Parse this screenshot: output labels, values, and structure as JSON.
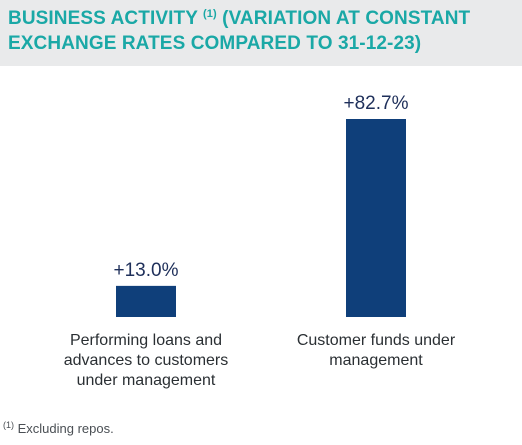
{
  "title": {
    "text_before": "BUSINESS ACTIVITY ",
    "footnote_marker": "(1)",
    "text_after": " (VARIATION AT CONSTANT EXCHANGE RATES COMPARED TO 31-12-23)"
  },
  "footnote": {
    "marker": "(1)",
    "text": " Excluding repos."
  },
  "colors": {
    "title": "#1aa8a6",
    "title_band": "#e9eaeb",
    "bar": "#0f3f7a",
    "value_label": "#1e2f5a"
  },
  "chart_data": {
    "type": "bar",
    "categories": [
      "Performing loans and advances to customers under management",
      "Customer funds under management"
    ],
    "values": [
      13.0,
      82.7
    ],
    "value_labels": [
      "+13.0%",
      "+82.7%"
    ],
    "unit": "%",
    "ylim": [
      0,
      82.7
    ],
    "grid": false,
    "legend": "none"
  }
}
